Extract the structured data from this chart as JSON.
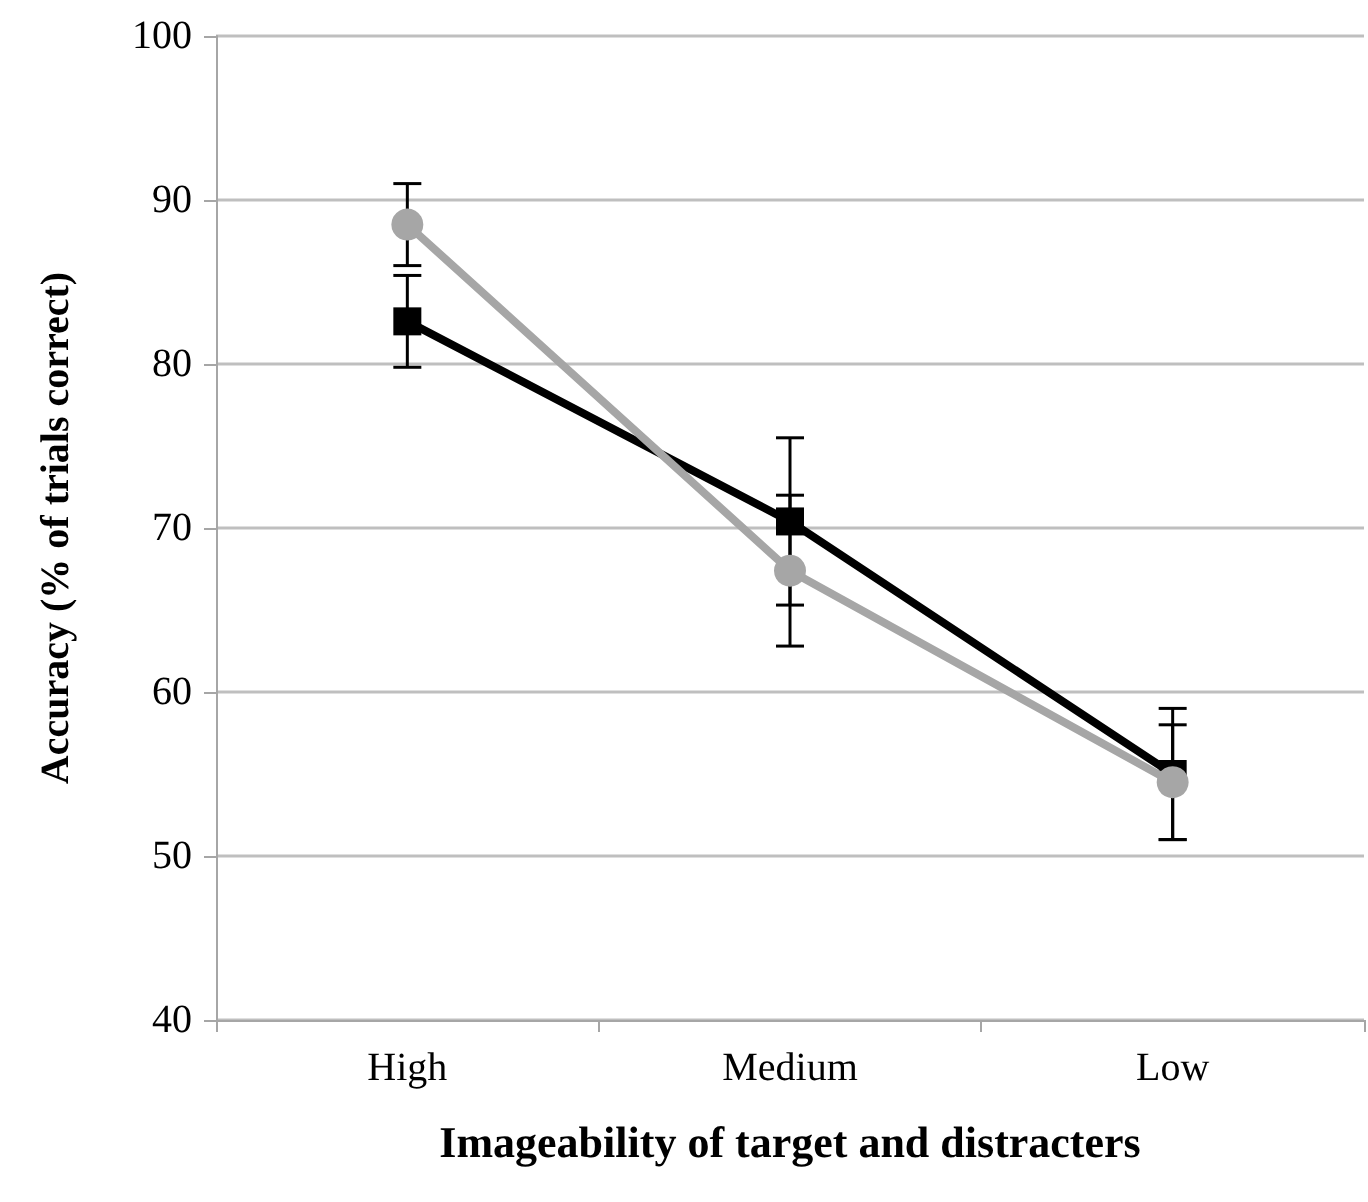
{
  "chart_data": {
    "type": "line",
    "xlabel": "Imageability of target and distracters",
    "ylabel": "Accuracy (% of trials correct)",
    "categories": [
      "High",
      "Medium",
      "Low"
    ],
    "series": [
      {
        "color": "#000000",
        "marker": "square",
        "values": [
          82.6,
          70.4,
          55.0
        ],
        "errors": [
          2.8,
          5.1,
          4.0
        ]
      },
      {
        "color": "#a6a6a6",
        "marker": "circle",
        "values": [
          88.5,
          67.4,
          54.5
        ],
        "errors": [
          2.5,
          4.6,
          3.5
        ]
      }
    ],
    "ylim": [
      40,
      100
    ],
    "yticks": [
      40,
      50,
      60,
      70,
      80,
      90,
      100
    ],
    "grid": "y",
    "line_style": "solid"
  }
}
